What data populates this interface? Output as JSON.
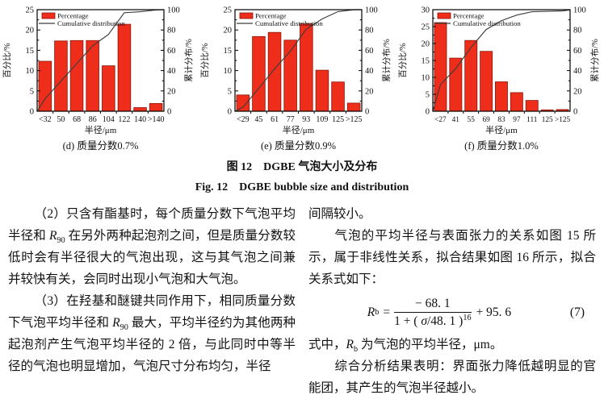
{
  "figure": {
    "caption_zh": "图 12　DGBE 气泡大小及分布",
    "caption_en": "Fig. 12　DGBE bubble size and distribution"
  },
  "chart_data": [
    {
      "type": "bar",
      "panel_label": "(d) 质量分数0.7%",
      "xlabel": "半径/μm",
      "ylabel_left": "百分比/%",
      "ylabel_right": "累计分布/%",
      "legend": [
        "Percentage",
        "Cumulative distribution"
      ],
      "legend_position": "top-left-inside",
      "grid": false,
      "categories": [
        "<32",
        "50",
        "68",
        "86",
        "104",
        "122",
        "140",
        ">140"
      ],
      "series": [
        {
          "name": "Percentage",
          "type": "bar",
          "axis": "left",
          "values": [
            12.3,
            17.3,
            17.4,
            17.4,
            11.2,
            21.4,
            0.9,
            1.9
          ]
        },
        {
          "name": "Cumulative distribution",
          "type": "line",
          "axis": "right",
          "values": [
            12.3,
            29.6,
            47.0,
            64.4,
            75.6,
            97.0,
            97.9,
            99.8
          ]
        }
      ],
      "ylim_left": [
        0,
        25
      ],
      "ytick_step_left": 5,
      "ylim_right": [
        0,
        100
      ],
      "ytick_step_right": 20,
      "bar_color": "#ee2d1a",
      "bar_edge_color": "#8c150a",
      "line_color": "#3d3d3d"
    },
    {
      "type": "bar",
      "panel_label": "(e) 质量分数0.9%",
      "xlabel": "半径/μm",
      "ylabel_left": "百分比/%",
      "ylabel_right": "累计分布/%",
      "legend": [
        "Percentage",
        "Cumulative distribution"
      ],
      "legend_position": "top-left-inside",
      "grid": false,
      "categories": [
        "<29",
        "45",
        "61",
        "77",
        "93",
        "109",
        "125",
        ">125"
      ],
      "series": [
        {
          "name": "Percentage",
          "type": "bar",
          "axis": "left",
          "values": [
            4.0,
            18.4,
            19.4,
            17.5,
            21.5,
            10.1,
            7.2,
            2.0
          ]
        },
        {
          "name": "Cumulative distribution",
          "type": "line",
          "axis": "right",
          "values": [
            4.0,
            22.4,
            41.8,
            59.3,
            80.8,
            90.9,
            98.1,
            100.0
          ]
        }
      ],
      "ylim_left": [
        0,
        25
      ],
      "ytick_step_left": 5,
      "ylim_right": [
        0,
        100
      ],
      "ytick_step_right": 20,
      "bar_color": "#ee2d1a",
      "bar_edge_color": "#8c150a",
      "line_color": "#3d3d3d"
    },
    {
      "type": "bar",
      "panel_label": "(f) 质量分数1.0%",
      "xlabel": "半径/μm",
      "ylabel_left": "百分比/%",
      "ylabel_right": "累计分布/%",
      "legend": [
        "Percentage",
        "Cumulative distribution"
      ],
      "legend_position": "top-left-inside",
      "grid": false,
      "categories": [
        "<27",
        "41",
        "55",
        "69",
        "83",
        "97",
        "111",
        "125",
        ">125"
      ],
      "series": [
        {
          "name": "Percentage",
          "type": "bar",
          "axis": "left",
          "values": [
            26.2,
            15.7,
            20.9,
            17.7,
            8.7,
            5.5,
            3.2,
            0.4,
            0.5
          ]
        },
        {
          "name": "Cumulative distribution",
          "type": "line",
          "axis": "right",
          "values": [
            26.2,
            41.9,
            62.8,
            80.5,
            89.2,
            94.7,
            97.9,
            98.3,
            98.8
          ]
        }
      ],
      "ylim_left": [
        0,
        30
      ],
      "ytick_step_left": 5,
      "ylim_right": [
        0,
        100
      ],
      "ytick_step_right": 20,
      "bar_color": "#ee2d1a",
      "bar_edge_color": "#8c150a",
      "line_color": "#3d3d3d"
    }
  ],
  "body": {
    "left_column": [
      {
        "indent": true,
        "runs": [
          {
            "t": "（2）只含有酯基时，每个质量分数下气泡平均半径和 "
          },
          {
            "t": "R",
            "i": true
          },
          {
            "t": "90",
            "sub": true
          },
          {
            "t": " 在另外两种起泡剂之间，但是质量分数较低时会有半径很大的气泡出现，这与其气泡之间兼并较快有关，会同时出现小气泡和大气泡。"
          }
        ]
      },
      {
        "indent": true,
        "runs": [
          {
            "t": "（3）在羟基和醚键共同作用下，相同质量分数下气泡平均半径和 "
          },
          {
            "t": "R",
            "i": true
          },
          {
            "t": "90",
            "sub": true
          },
          {
            "t": " 最大，平均半径约为其他两种起泡剂产生气泡平均半径的 2 倍，与此同时中等半径的气泡也明显增加，气泡尺寸分布均匀，半径"
          }
        ]
      }
    ],
    "right_column_pre": [
      {
        "indent": false,
        "runs": [
          {
            "t": "间隔较小。"
          }
        ]
      },
      {
        "indent": true,
        "runs": [
          {
            "t": "气泡的平均半径与表面张力的关系如图 15 所示，属于非线性关系，拟合结果如图 16 所示，拟合关系式如下："
          }
        ]
      }
    ],
    "formula": {
      "lhs": "R",
      "lhs_sub": "b",
      "equals": "=",
      "numerator": "− 68. 1",
      "den_pre": "1 + ( ",
      "den_sigma": "σ",
      "den_post": "/48. 1 )",
      "den_exp": "16",
      "tail": "+ 95. 6",
      "eq_number": "(7)"
    },
    "right_column_post": [
      {
        "indent": false,
        "runs": [
          {
            "t": "式中，"
          },
          {
            "t": "R",
            "i": true
          },
          {
            "t": "b",
            "sub": true
          },
          {
            "t": " 为气泡的平均半径，μm。"
          }
        ]
      },
      {
        "indent": true,
        "runs": [
          {
            "t": "综合分析结果表明：界面张力降低越明显的官能团，其产生的气泡半径越小。"
          }
        ]
      }
    ]
  }
}
